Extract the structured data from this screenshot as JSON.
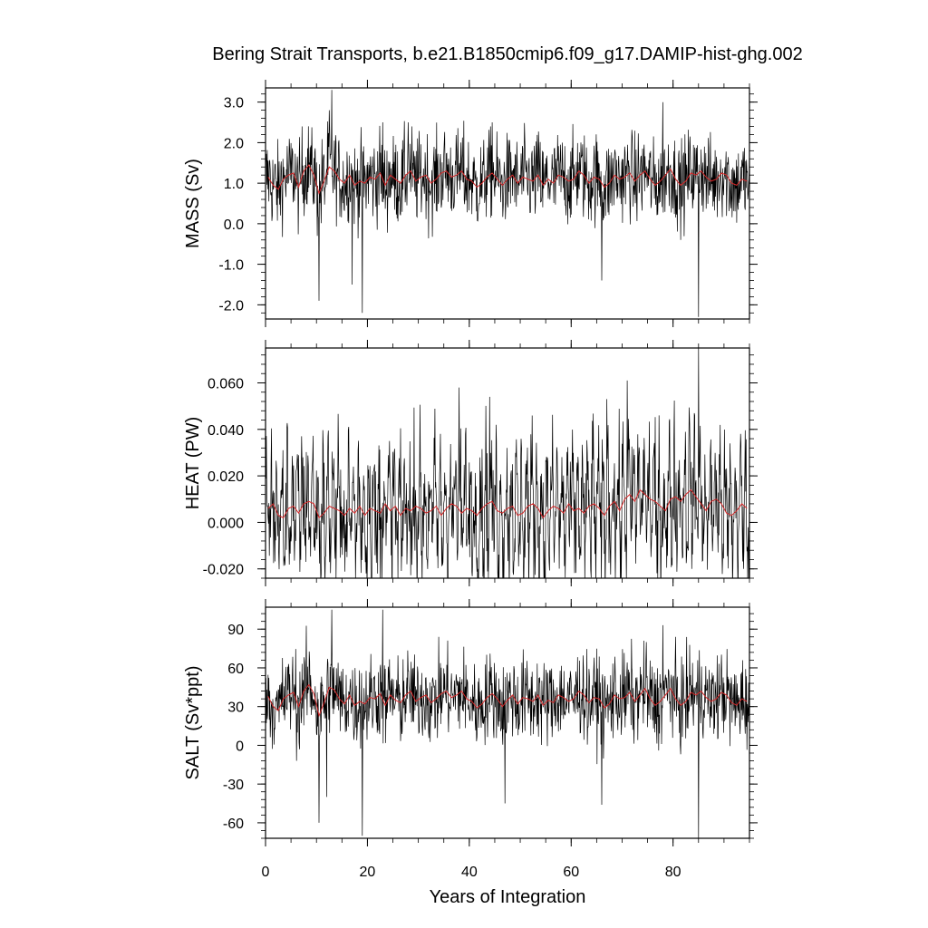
{
  "chart_data": {
    "type": "line",
    "title": "Bering Strait Transports, b.e21.B1850cmip6.f09_g17.DAMIP-hist-ghg.002",
    "xlabel": "Years of Integration",
    "xlim": [
      0,
      95
    ],
    "x_ticks": [
      0,
      20,
      40,
      60,
      80
    ],
    "x_tick_labels": [
      "0",
      "20",
      "40",
      "60",
      "80"
    ],
    "colors": {
      "monthly": "#000000",
      "annual": "#d62728"
    },
    "panels": [
      {
        "ylabel": "MASS (Sv)",
        "ylim": [
          -2.35,
          3.35
        ],
        "y_ticks": [
          3.0,
          2.0,
          1.0,
          0.0,
          -1.0,
          -2.0
        ],
        "y_tick_labels": [
          "3.0",
          "2.0",
          "1.0",
          "0.0",
          "-1.0",
          "-2.0"
        ],
        "series": [
          {
            "values_note_monthly_mean": 1.1,
            "spread": 0.55
          }
        ],
        "annual_x": [
          0.5,
          1.5,
          2.5,
          3.5,
          4.5,
          5.5,
          6.5,
          7.5,
          8.5,
          9.5,
          10.5,
          11.5,
          12.5,
          13.5,
          14.5,
          15.5,
          16.5,
          17.5,
          18.5,
          19.5,
          20.5,
          21.5,
          22.5,
          23.5,
          24.5,
          25.5,
          26.5,
          27.5,
          28.5,
          29.5,
          30.5,
          31.5,
          32.5,
          33.5,
          34.5,
          35.5,
          36.5,
          37.5,
          38.5,
          39.5,
          40.5,
          41.5,
          42.5,
          43.5,
          44.5,
          45.5,
          46.5,
          47.5,
          48.5,
          49.5,
          50.5,
          51.5,
          52.5,
          53.5,
          54.5,
          55.5,
          56.5,
          57.5,
          58.5,
          59.5,
          60.5,
          61.5,
          62.5,
          63.5,
          64.5,
          65.5,
          66.5,
          67.5,
          68.5,
          69.5,
          70.5,
          71.5,
          72.5,
          73.5,
          74.5,
          75.5,
          76.5,
          77.5,
          78.5,
          79.5,
          80.5,
          81.5,
          82.5,
          83.5,
          84.5,
          85.5,
          86.5,
          87.5,
          88.5,
          89.5,
          90.5,
          91.5,
          92.5,
          93.5,
          94.5
        ],
        "annual_values": [
          1.15,
          0.95,
          0.85,
          1.1,
          1.2,
          1.25,
          0.9,
          1.3,
          1.45,
          1.2,
          0.75,
          1.05,
          1.4,
          1.3,
          1.1,
          1.0,
          1.2,
          0.95,
          1.05,
          1.0,
          1.15,
          1.1,
          1.25,
          0.95,
          1.2,
          1.1,
          1.0,
          1.2,
          1.3,
          1.05,
          1.15,
          1.2,
          1.0,
          1.1,
          1.25,
          1.3,
          1.15,
          1.2,
          1.3,
          1.1,
          1.05,
          0.9,
          1.0,
          1.15,
          1.25,
          1.1,
          0.95,
          1.1,
          1.2,
          1.0,
          1.15,
          1.1,
          1.05,
          1.2,
          0.95,
          1.1,
          1.0,
          1.2,
          1.15,
          1.05,
          1.1,
          1.3,
          1.2,
          1.0,
          1.15,
          1.1,
          0.9,
          1.0,
          1.2,
          1.1,
          1.15,
          1.25,
          1.05,
          1.2,
          1.3,
          1.1,
          0.95,
          1.05,
          1.2,
          1.35,
          1.1,
          0.95,
          1.05,
          1.25,
          1.2,
          1.3,
          1.15,
          1.05,
          1.1,
          1.25,
          1.2,
          1.0,
          0.95,
          1.1,
          1.05
        ],
        "spikes": [
          [
            13.0,
            3.3
          ],
          [
            85.0,
            -2.3
          ],
          [
            19.0,
            -2.2
          ],
          [
            10.5,
            -1.9
          ],
          [
            12.5,
            2.8
          ],
          [
            23.0,
            2.5
          ],
          [
            28.0,
            2.5
          ],
          [
            17.0,
            -1.5
          ],
          [
            44.5,
            2.5
          ],
          [
            66.0,
            -1.4
          ],
          [
            78.0,
            3.0
          ]
        ]
      },
      {
        "ylabel": "HEAT (PW)",
        "ylim": [
          -0.024,
          0.075
        ],
        "y_ticks": [
          0.06,
          0.04,
          0.02,
          0.0,
          -0.02
        ],
        "y_tick_labels": [
          "0.060",
          "0.040",
          "0.020",
          "0.000",
          "-0.020"
        ],
        "series": [
          {
            "values_note_monthly_mean": 0.005,
            "spread": 0.013
          }
        ],
        "annual_x": [
          0.5,
          1.5,
          2.5,
          3.5,
          4.5,
          5.5,
          6.5,
          7.5,
          8.5,
          9.5,
          10.5,
          11.5,
          12.5,
          13.5,
          14.5,
          15.5,
          16.5,
          17.5,
          18.5,
          19.5,
          20.5,
          21.5,
          22.5,
          23.5,
          24.5,
          25.5,
          26.5,
          27.5,
          28.5,
          29.5,
          30.5,
          31.5,
          32.5,
          33.5,
          34.5,
          35.5,
          36.5,
          37.5,
          38.5,
          39.5,
          40.5,
          41.5,
          42.5,
          43.5,
          44.5,
          45.5,
          46.5,
          47.5,
          48.5,
          49.5,
          50.5,
          51.5,
          52.5,
          53.5,
          54.5,
          55.5,
          56.5,
          57.5,
          58.5,
          59.5,
          60.5,
          61.5,
          62.5,
          63.5,
          64.5,
          65.5,
          66.5,
          67.5,
          68.5,
          69.5,
          70.5,
          71.5,
          72.5,
          73.5,
          74.5,
          75.5,
          76.5,
          77.5,
          78.5,
          79.5,
          80.5,
          81.5,
          82.5,
          83.5,
          84.5,
          85.5,
          86.5,
          87.5,
          88.5,
          89.5,
          90.5,
          91.5,
          92.5,
          93.5,
          94.5
        ],
        "annual_values": [
          0.006,
          0.008,
          0.003,
          0.002,
          0.006,
          0.007,
          0.004,
          0.008,
          0.009,
          0.008,
          0.002,
          0.004,
          0.007,
          0.006,
          0.005,
          0.003,
          0.006,
          0.004,
          0.007,
          0.003,
          0.006,
          0.005,
          0.004,
          0.008,
          0.005,
          0.007,
          0.003,
          0.006,
          0.005,
          0.007,
          0.006,
          0.004,
          0.005,
          0.007,
          0.003,
          0.006,
          0.008,
          0.007,
          0.004,
          0.006,
          0.005,
          0.003,
          0.006,
          0.008,
          0.009,
          0.005,
          0.004,
          0.006,
          0.007,
          0.003,
          0.004,
          0.007,
          0.008,
          0.006,
          0.002,
          0.005,
          0.007,
          0.006,
          0.004,
          0.008,
          0.005,
          0.006,
          0.004,
          0.007,
          0.008,
          0.006,
          0.003,
          0.007,
          0.009,
          0.005,
          0.01,
          0.012,
          0.009,
          0.014,
          0.012,
          0.01,
          0.009,
          0.007,
          0.005,
          0.01,
          0.011,
          0.009,
          0.012,
          0.014,
          0.011,
          0.008,
          0.005,
          0.009,
          0.01,
          0.008,
          0.004,
          0.003,
          0.005,
          0.008,
          0.006
        ],
        "spikes": [
          [
            85.0,
            0.075
          ],
          [
            38.0,
            0.058
          ],
          [
            44.0,
            0.054
          ],
          [
            71.0,
            0.061
          ],
          [
            67.0,
            0.053
          ],
          [
            22.0,
            -0.022
          ],
          [
            77.0,
            -0.024
          ],
          [
            26.0,
            -0.024
          ]
        ]
      },
      {
        "ylabel": "SALT (Sv*ppt)",
        "ylim": [
          -72,
          107
        ],
        "y_ticks": [
          90,
          60,
          30,
          0,
          -30,
          -60
        ],
        "y_tick_labels": [
          "90",
          "60",
          "30",
          "0",
          "-30",
          "-60"
        ],
        "series": [
          {
            "values_note_monthly_mean": 36,
            "spread": 17
          }
        ],
        "annual_x": [
          0.5,
          1.5,
          2.5,
          3.5,
          4.5,
          5.5,
          6.5,
          7.5,
          8.5,
          9.5,
          10.5,
          11.5,
          12.5,
          13.5,
          14.5,
          15.5,
          16.5,
          17.5,
          18.5,
          19.5,
          20.5,
          21.5,
          22.5,
          23.5,
          24.5,
          25.5,
          26.5,
          27.5,
          28.5,
          29.5,
          30.5,
          31.5,
          32.5,
          33.5,
          34.5,
          35.5,
          36.5,
          37.5,
          38.5,
          39.5,
          40.5,
          41.5,
          42.5,
          43.5,
          44.5,
          45.5,
          46.5,
          47.5,
          48.5,
          49.5,
          50.5,
          51.5,
          52.5,
          53.5,
          54.5,
          55.5,
          56.5,
          57.5,
          58.5,
          59.5,
          60.5,
          61.5,
          62.5,
          63.5,
          64.5,
          65.5,
          66.5,
          67.5,
          68.5,
          69.5,
          70.5,
          71.5,
          72.5,
          73.5,
          74.5,
          75.5,
          76.5,
          77.5,
          78.5,
          79.5,
          80.5,
          81.5,
          82.5,
          83.5,
          84.5,
          85.5,
          86.5,
          87.5,
          88.5,
          89.5,
          90.5,
          91.5,
          92.5,
          93.5,
          94.5
        ],
        "annual_values": [
          38,
          30,
          27,
          36,
          39,
          41,
          30,
          42,
          47,
          40,
          23,
          33,
          45,
          43,
          36,
          32,
          39,
          31,
          34,
          32,
          37,
          36,
          40,
          31,
          39,
          35,
          33,
          39,
          42,
          34,
          37,
          39,
          33,
          36,
          40,
          42,
          37,
          39,
          42,
          36,
          34,
          29,
          32,
          37,
          40,
          36,
          30,
          35,
          39,
          32,
          37,
          36,
          34,
          39,
          31,
          35,
          33,
          39,
          37,
          34,
          36,
          42,
          39,
          33,
          37,
          36,
          29,
          32,
          39,
          36,
          37,
          41,
          34,
          39,
          44,
          36,
          31,
          34,
          39,
          44,
          36,
          31,
          34,
          41,
          39,
          42,
          37,
          34,
          36,
          41,
          39,
          33,
          31,
          36,
          34
        ],
        "spikes": [
          [
            13.0,
            105
          ],
          [
            23.0,
            105
          ],
          [
            85.0,
            -72
          ],
          [
            19.0,
            -70
          ],
          [
            10.5,
            -60
          ],
          [
            12.0,
            -40
          ],
          [
            47.0,
            -45
          ],
          [
            66.0,
            -46
          ],
          [
            78.0,
            93
          ]
        ]
      }
    ]
  }
}
